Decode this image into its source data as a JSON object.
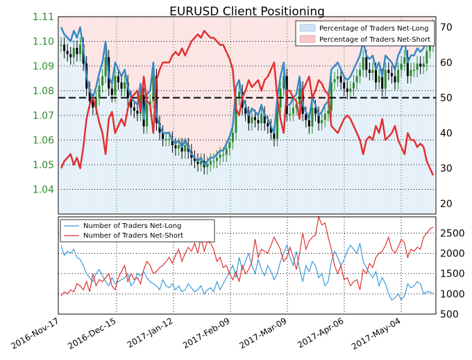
{
  "chart_data": [
    {
      "type": "line",
      "title": "EURUSD Client Positioning",
      "price_axis": {
        "side": "left",
        "ylim": [
          1.03,
          1.11
        ],
        "ticks": [
          "1.04",
          "1.05",
          "1.06",
          "1.07",
          "1.08",
          "1.09",
          "1.10",
          "1.11"
        ],
        "tick_values": [
          1.04,
          1.05,
          1.06,
          1.07,
          1.08,
          1.09,
          1.1,
          1.11
        ]
      },
      "pct_axis": {
        "side": "right",
        "ylim": [
          17,
          73
        ],
        "ticks": [
          "20",
          "30",
          "40",
          "50",
          "60",
          "70"
        ],
        "tick_values": [
          20,
          30,
          40,
          50,
          60,
          70
        ]
      },
      "reference_line": 50,
      "grid": true,
      "legend_position": "top-right",
      "legend": [
        {
          "label": "Percentage of Traders Net-Long",
          "color": "#cfe3f4"
        },
        {
          "label": "Percentage of Traders Net-Short",
          "color": "#f7c8c8"
        }
      ],
      "series": [
        {
          "name": "Percentage of Traders Net-Long",
          "color": "#3a87c0",
          "values": [
            70,
            68,
            67,
            66,
            69,
            67,
            70,
            64,
            56,
            52,
            50,
            53,
            57,
            60,
            66,
            56,
            54,
            60,
            58,
            56,
            58,
            53,
            50,
            49,
            48,
            54,
            44,
            51,
            52,
            60,
            45,
            42,
            40,
            40,
            40,
            38,
            37,
            38,
            36,
            38,
            36,
            34,
            33,
            32,
            33,
            31,
            32,
            33,
            33,
            34,
            35,
            35,
            37,
            39,
            42,
            53,
            55,
            50,
            48,
            45,
            47,
            46,
            45,
            48,
            45,
            44,
            42,
            40,
            50,
            56,
            60,
            48,
            48,
            50,
            51,
            56,
            48,
            46,
            44,
            50,
            48,
            45,
            46,
            48,
            49,
            58,
            59,
            60,
            58,
            56,
            55,
            56,
            58,
            60,
            62,
            66,
            62,
            61,
            62,
            58,
            60,
            56,
            62,
            61,
            60,
            58,
            62,
            64,
            66,
            60,
            62,
            62,
            64,
            63,
            64,
            68,
            70,
            72
          ]
        },
        {
          "name": "Percentage of Traders Net-Short",
          "color": "#e03030",
          "values": [
            30,
            32,
            33,
            34,
            31,
            33,
            30,
            36,
            44,
            48,
            50,
            47,
            43,
            40,
            34,
            44,
            46,
            40,
            42,
            44,
            42,
            47,
            50,
            51,
            52,
            46,
            56,
            49,
            48,
            40,
            55,
            58,
            60,
            60,
            60,
            62,
            63,
            62,
            64,
            62,
            64,
            66,
            67,
            68,
            67,
            69,
            68,
            67,
            67,
            66,
            65,
            65,
            63,
            61,
            58,
            47,
            45,
            50,
            52,
            55,
            53,
            54,
            55,
            52,
            55,
            56,
            58,
            60,
            50,
            44,
            40,
            52,
            52,
            50,
            49,
            44,
            52,
            54,
            56,
            50,
            52,
            55,
            54,
            52,
            51,
            42,
            41,
            40,
            42,
            44,
            45,
            44,
            42,
            40,
            38,
            34,
            38,
            39,
            38,
            42,
            40,
            44,
            38,
            39,
            40,
            42,
            38,
            36,
            34,
            40,
            38,
            38,
            36,
            37,
            36,
            32,
            30,
            28
          ]
        }
      ],
      "ohlc_note": "EURUSD daily price bars"
    },
    {
      "type": "line",
      "ylim": [
        500,
        2900
      ],
      "ticks": [
        "500",
        "1000",
        "1500",
        "2000",
        "2500"
      ],
      "tick_values": [
        500,
        1000,
        1500,
        2000,
        2500
      ],
      "x_ticks": [
        "2016-Nov-17",
        "2016-Dec-15",
        "2017-Jan-12",
        "2017-Feb-09",
        "2017-Mar-09",
        "2017-Apr-06",
        "2017-May-04"
      ],
      "grid": true,
      "legend_position": "top-left",
      "series": [
        {
          "name": "Number of Traders Net-Long",
          "color": "#3a9ad9",
          "values": [
            2200,
            1950,
            2050,
            2000,
            2100,
            1900,
            1850,
            1700,
            1500,
            1400,
            1300,
            1500,
            1600,
            1450,
            1300,
            1200,
            1400,
            1250,
            1300,
            1350,
            1400,
            1500,
            1200,
            1300,
            1500,
            1450,
            1550,
            1400,
            1300,
            1250,
            1200,
            1100,
            1350,
            1200,
            1150,
            1250,
            1100,
            1200,
            1050,
            1100,
            1250,
            1150,
            1050,
            1100,
            1200,
            1000,
            1100,
            1150,
            1050,
            1300,
            1100,
            1250,
            1400,
            1550,
            1700,
            1400,
            1900,
            1600,
            1800,
            2000,
            1700,
            1500,
            1850,
            1600,
            1450,
            1700,
            1550,
            1350,
            1500,
            1800,
            2000,
            2200,
            1900,
            1700,
            2050,
            1600,
            1300,
            1700,
            1550,
            1800,
            1700,
            1400,
            1500,
            1200,
            1300,
            1800,
            2050,
            1900,
            1700,
            1850,
            2050,
            2200,
            2100,
            2000,
            2250,
            1800,
            1650,
            1500,
            1400,
            1550,
            1200,
            1400,
            1250,
            1000,
            850,
            900,
            1000,
            850,
            950,
            1250,
            1150,
            1200,
            1300,
            1250,
            1000,
            1050,
            1050,
            1000
          ]
        },
        {
          "name": "Number of Traders Net-Short",
          "color": "#e03030",
          "values": [
            950,
            1050,
            1000,
            1100,
            1050,
            1250,
            1200,
            1100,
            1300,
            1050,
            1500,
            1200,
            1350,
            1300,
            1400,
            1500,
            1200,
            1100,
            1400,
            1550,
            1700,
            1300,
            1500,
            1350,
            1400,
            1250,
            1600,
            1800,
            1700,
            1500,
            1550,
            1650,
            1700,
            1800,
            1900,
            1750,
            1950,
            2100,
            1800,
            2000,
            2150,
            2050,
            2250,
            2000,
            2400,
            2050,
            2300,
            2250,
            2100,
            1800,
            1900,
            1650,
            1700,
            1500,
            1350,
            1550,
            1300,
            1700,
            1500,
            1600,
            1800,
            2350,
            1900,
            2100,
            2050,
            2000,
            2200,
            2400,
            2250,
            2100,
            1800,
            1900,
            2150,
            1900,
            1600,
            2000,
            2500,
            2100,
            2300,
            2400,
            2450,
            2900,
            2700,
            2750,
            2400,
            2100,
            1700,
            1500,
            1700,
            1350,
            1400,
            1200,
            1300,
            1350,
            1100,
            1600,
            1500,
            1750,
            1650,
            1900,
            2000,
            2050,
            2200,
            2400,
            2100,
            2000,
            2150,
            2350,
            2250,
            1900,
            2100,
            2050,
            2150,
            2100,
            2400,
            2500,
            2600,
            2650
          ]
        }
      ]
    }
  ]
}
